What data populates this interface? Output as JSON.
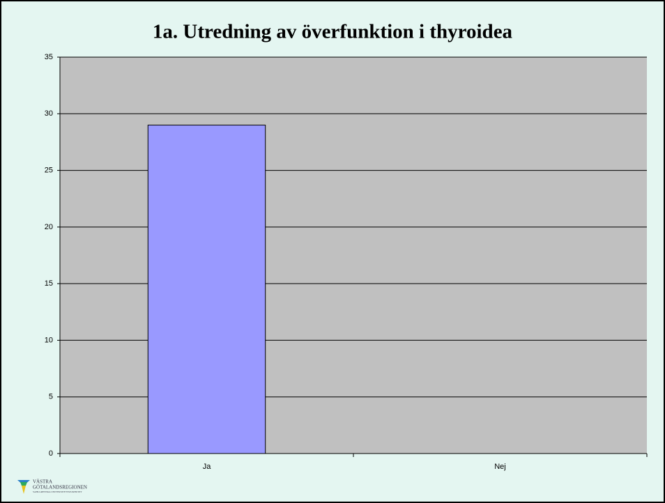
{
  "chart_data": {
    "type": "bar",
    "title": "1a. Utredning av överfunktion i thyroidea",
    "categories": [
      "Ja",
      "Nej"
    ],
    "values": [
      29,
      0
    ],
    "color": "#9999ff",
    "ylim": [
      0,
      35
    ],
    "yticks": [
      0,
      5,
      10,
      15,
      20,
      25,
      30,
      35
    ],
    "grid": true
  },
  "logo": {
    "lines": [
      "VÄSTRA",
      "GÖTALANDSREGIONEN"
    ],
    "subtitle": "SAHLGRENSKA UNIVERSITETSSJUKHUSET"
  }
}
